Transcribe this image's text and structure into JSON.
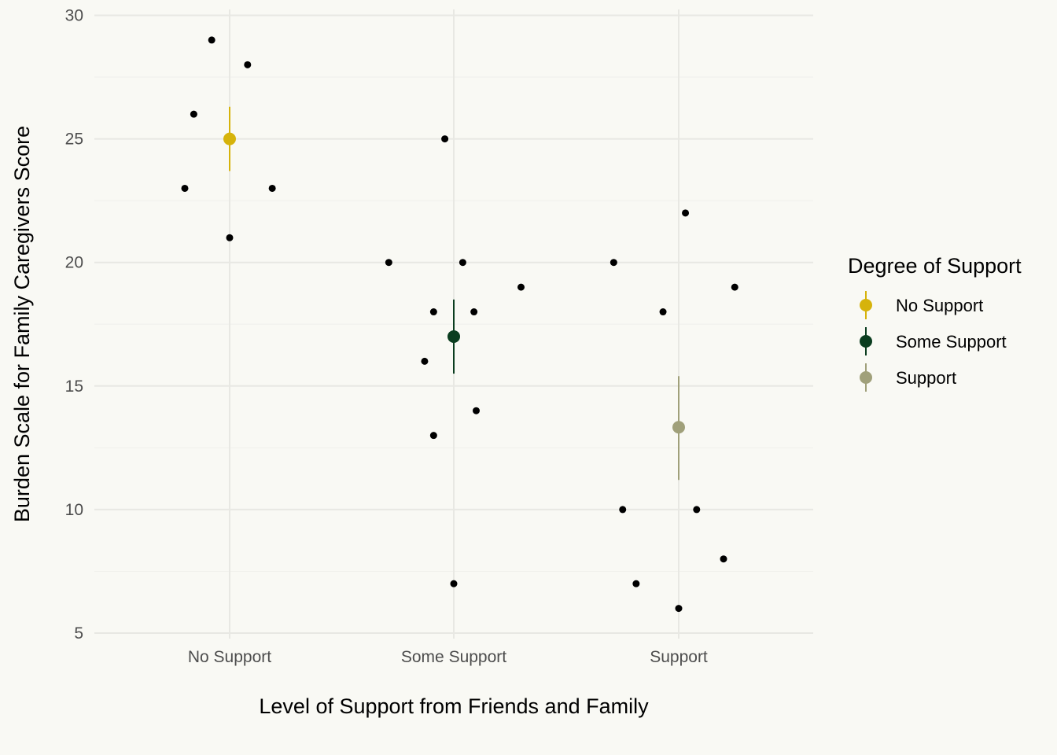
{
  "chart_data": {
    "type": "scatter",
    "title": "",
    "xlabel": "Level of Support from Friends and Family",
    "ylabel": "Burden Scale for Family Caregivers Score",
    "categories": [
      "No Support",
      "Some Support",
      "Support"
    ],
    "y_ticks": [
      5,
      10,
      15,
      20,
      25,
      30
    ],
    "ylim": [
      5,
      30
    ],
    "grid": true,
    "legend": {
      "title": "Degree of Support",
      "placement": "right",
      "entries": [
        "No Support",
        "Some Support",
        "Support"
      ]
    },
    "colors": {
      "No Support": "#d6b30b",
      "Some Support": "#0b3d1f",
      "Support": "#a0a07a",
      "points": "#000000"
    },
    "points": [
      {
        "category": "No Support",
        "jitter": -0.08,
        "y": 29
      },
      {
        "category": "No Support",
        "jitter": 0.08,
        "y": 28
      },
      {
        "category": "No Support",
        "jitter": -0.16,
        "y": 26
      },
      {
        "category": "No Support",
        "jitter": -0.2,
        "y": 23
      },
      {
        "category": "No Support",
        "jitter": 0.19,
        "y": 23
      },
      {
        "category": "No Support",
        "jitter": 0.0,
        "y": 21
      },
      {
        "category": "Some Support",
        "jitter": -0.04,
        "y": 25
      },
      {
        "category": "Some Support",
        "jitter": -0.29,
        "y": 20
      },
      {
        "category": "Some Support",
        "jitter": 0.04,
        "y": 20
      },
      {
        "category": "Some Support",
        "jitter": 0.3,
        "y": 19
      },
      {
        "category": "Some Support",
        "jitter": -0.09,
        "y": 18
      },
      {
        "category": "Some Support",
        "jitter": 0.09,
        "y": 18
      },
      {
        "category": "Some Support",
        "jitter": -0.13,
        "y": 16
      },
      {
        "category": "Some Support",
        "jitter": 0.1,
        "y": 14
      },
      {
        "category": "Some Support",
        "jitter": -0.09,
        "y": 13
      },
      {
        "category": "Some Support",
        "jitter": 0.0,
        "y": 7
      },
      {
        "category": "Support",
        "jitter": 0.03,
        "y": 22
      },
      {
        "category": "Support",
        "jitter": -0.29,
        "y": 20
      },
      {
        "category": "Support",
        "jitter": 0.25,
        "y": 19
      },
      {
        "category": "Support",
        "jitter": -0.07,
        "y": 18
      },
      {
        "category": "Support",
        "jitter": -0.25,
        "y": 10
      },
      {
        "category": "Support",
        "jitter": 0.08,
        "y": 10
      },
      {
        "category": "Support",
        "jitter": 0.2,
        "y": 8
      },
      {
        "category": "Support",
        "jitter": -0.19,
        "y": 7
      },
      {
        "category": "Support",
        "jitter": 0.0,
        "y": 6
      }
    ],
    "summary": [
      {
        "category": "No Support",
        "mean": 25.0,
        "lower": 23.7,
        "upper": 26.3
      },
      {
        "category": "Some Support",
        "mean": 17.0,
        "lower": 15.5,
        "upper": 18.5
      },
      {
        "category": "Support",
        "mean": 13.33,
        "lower": 11.2,
        "upper": 15.4
      }
    ]
  }
}
